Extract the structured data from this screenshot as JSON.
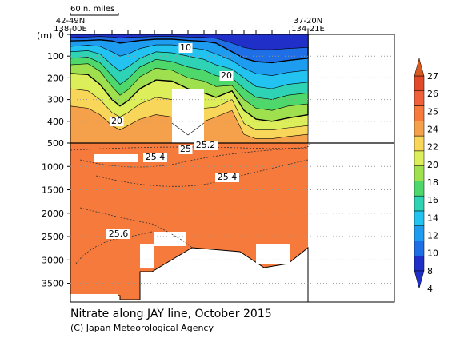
{
  "chart_data": {
    "type": "heatmap",
    "title": "Nitrate along JAY line, October 2015",
    "credit": "(C) Japan Meteorological Agency",
    "y_unit": "(m)",
    "scale_label": "60 n. miles",
    "x_endpoints": {
      "left": [
        "42-49N",
        "138-00E"
      ],
      "right": [
        "37-20N",
        "134-21E"
      ]
    },
    "upper_panel": {
      "depth_range": [
        0,
        500
      ],
      "depth_ticks": [
        "0",
        "100",
        "200",
        "300",
        "400",
        "500"
      ]
    },
    "lower_panel": {
      "depth_range": [
        500,
        3900
      ],
      "depth_ticks": [
        "1000",
        "1500",
        "2000",
        "2500",
        "3000",
        "3500"
      ]
    },
    "colorbar": {
      "levels": [
        "4",
        "8",
        "10",
        "12",
        "14",
        "16",
        "18",
        "20",
        "22",
        "24",
        "25",
        "26",
        "27"
      ],
      "colors": [
        "#1f2fc8",
        "#1e6ee6",
        "#1e9df0",
        "#22c3f0",
        "#2ed2b4",
        "#4ed86c",
        "#9ee04e",
        "#dcee5a",
        "#f7d65a",
        "#f5a04a",
        "#f57a3c",
        "#f0603a",
        "#e04a2a"
      ]
    },
    "contour_labels": [
      "10",
      "20",
      "20",
      "25.2",
      "25",
      "25.4",
      "25.4",
      "25.6"
    ],
    "grid": true
  }
}
